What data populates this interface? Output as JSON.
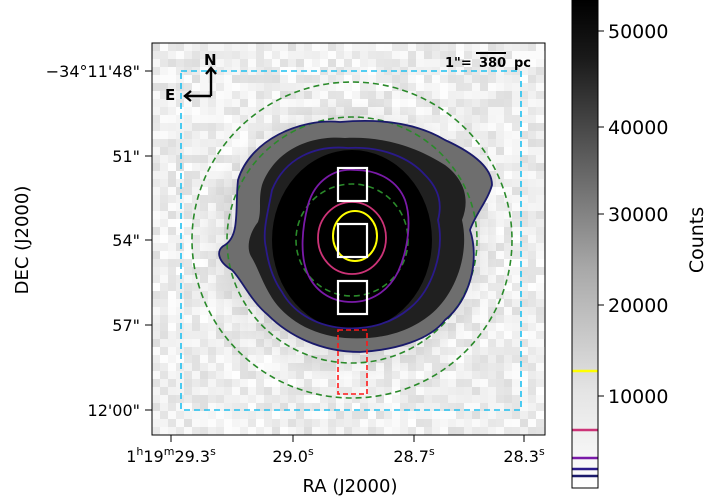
{
  "axes": {
    "xlabel": "RA (J2000)",
    "ylabel": "DEC (J2000)",
    "x_ticks": [
      {
        "base": "1",
        "u1": "h",
        "mid": "19",
        "u2": "m",
        "main": "29.3",
        "unit": "s"
      },
      {
        "base": "",
        "u1": "",
        "mid": "",
        "u2": "",
        "main": "29.0",
        "unit": "s"
      },
      {
        "base": "",
        "u1": "",
        "mid": "",
        "u2": "",
        "main": "28.7",
        "unit": "s"
      },
      {
        "base": "",
        "u1": "",
        "mid": "",
        "u2": "",
        "main": "28.3",
        "unit": "s"
      }
    ],
    "y_ticks": [
      "−34°11'48\"",
      "51\"",
      "54\"",
      "57\"",
      "12'00\""
    ]
  },
  "scale_bar": {
    "prefix": "1\"=",
    "value": "380",
    "unit": "pc"
  },
  "compass": {
    "north": "N",
    "east": "E"
  },
  "colorbar": {
    "label": "Counts",
    "ticks": [
      "50000",
      "40000",
      "30000",
      "20000",
      "10000"
    ],
    "range": [
      0,
      55000
    ],
    "cmap": "gray_r"
  },
  "contour_colors": [
    "#ffff00",
    "#cc3377",
    "#7a1aa8",
    "#2a1a8a",
    "#1a1a6b"
  ],
  "marker_colors": {
    "fov_box": "#1ec0f0",
    "annulus": "#2a8a2a",
    "aperture": "#ffffff",
    "slit": "#ff1a1a"
  }
}
